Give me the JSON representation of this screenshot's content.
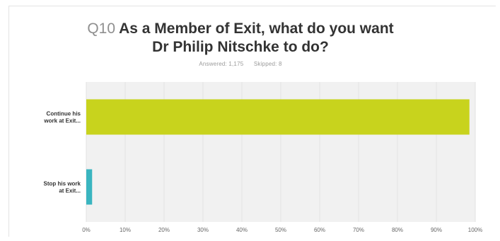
{
  "question": {
    "number": "Q10",
    "title_line1": "As a Member of Exit, what do you want",
    "title_line2": "Dr Philip Nitschke to do?"
  },
  "stats": {
    "answered": "Answered: 1,175",
    "skipped": "Skipped: 8"
  },
  "chart_data": {
    "type": "bar",
    "orientation": "horizontal",
    "categories": [
      "Continue his work at Exit...",
      "Stop his work at Exit..."
    ],
    "category_lines": [
      [
        "Continue his",
        "work at Exit..."
      ],
      [
        "Stop his work",
        "at Exit..."
      ]
    ],
    "values": [
      98.5,
      1.5
    ],
    "colors": [
      "#c8d31d",
      "#3ab5c0"
    ],
    "xlim": [
      0,
      100
    ],
    "x_ticks": [
      "0%",
      "10%",
      "20%",
      "30%",
      "40%",
      "50%",
      "60%",
      "70%",
      "80%",
      "90%",
      "100%"
    ],
    "grid": true
  }
}
